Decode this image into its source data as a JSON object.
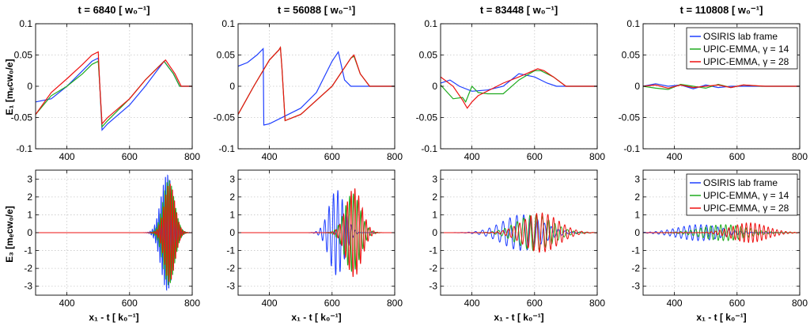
{
  "chart_data": {
    "type": "line",
    "titles": [
      "t = 6840 [ w₀⁻¹]",
      "t = 56088 [ w₀⁻¹]",
      "t = 83448 [ w₀⁻¹]",
      "t = 110808 [ w₀⁻¹]"
    ],
    "xlabel": "x₁ - t [ k₀⁻¹]",
    "top_ylabel": "E₁ [mₑcw₀/e]",
    "bottom_ylabel": "E₃ [mₑcw₀/e]",
    "xlim": [
      300,
      800
    ],
    "xticks": [
      "400",
      "600",
      "800"
    ],
    "top_ylim": [
      -0.1,
      0.1
    ],
    "top_yticks": [
      "-0.1",
      "-0.05",
      "0",
      "0.05",
      "0.1"
    ],
    "bottom_ylim": [
      -3.5,
      3.5
    ],
    "bottom_yticks": [
      "-3",
      "-2",
      "-1",
      "0",
      "1",
      "2",
      "3"
    ],
    "legend": [
      "OSIRIS lab frame",
      "UPIC-EMMA, γ = 14",
      "UPIC-EMMA, γ = 28"
    ],
    "colors": [
      "#1f3fff",
      "#1faa1f",
      "#ee1111"
    ],
    "top_series": [
      [
        [
          [
            300,
            -0.025
          ],
          [
            350,
            -0.02
          ],
          [
            400,
            0.0
          ],
          [
            450,
            0.025
          ],
          [
            480,
            0.04
          ],
          [
            500,
            0.045
          ],
          [
            505,
            0.0
          ],
          [
            512,
            -0.07
          ],
          [
            530,
            -0.06
          ],
          [
            600,
            -0.03
          ],
          [
            650,
            0.0
          ],
          [
            710,
            0.04
          ],
          [
            740,
            0.02
          ],
          [
            760,
            0.0
          ],
          [
            800,
            0.0
          ]
        ],
        [
          [
            300,
            -0.045
          ],
          [
            350,
            -0.015
          ],
          [
            400,
            0.0
          ],
          [
            450,
            0.02
          ],
          [
            480,
            0.035
          ],
          [
            500,
            0.04
          ],
          [
            505,
            0.0
          ],
          [
            512,
            -0.065
          ],
          [
            530,
            -0.055
          ],
          [
            600,
            -0.02
          ],
          [
            650,
            0.01
          ],
          [
            710,
            0.04
          ],
          [
            740,
            0.02
          ],
          [
            760,
            0.0
          ],
          [
            800,
            0.0
          ]
        ],
        [
          [
            300,
            -0.045
          ],
          [
            350,
            -0.01
          ],
          [
            400,
            0.012
          ],
          [
            450,
            0.035
          ],
          [
            480,
            0.05
          ],
          [
            500,
            0.055
          ],
          [
            505,
            0.0
          ],
          [
            512,
            -0.06
          ],
          [
            530,
            -0.05
          ],
          [
            600,
            -0.02
          ],
          [
            650,
            0.01
          ],
          [
            715,
            0.042
          ],
          [
            745,
            0.02
          ],
          [
            765,
            0.0
          ],
          [
            800,
            0.0
          ]
        ]
      ],
      [
        [
          [
            300,
            0.032
          ],
          [
            330,
            0.038
          ],
          [
            360,
            0.05
          ],
          [
            380,
            0.06
          ],
          [
            382,
            -0.062
          ],
          [
            400,
            -0.06
          ],
          [
            500,
            -0.035
          ],
          [
            550,
            -0.01
          ],
          [
            600,
            0.04
          ],
          [
            620,
            0.055
          ],
          [
            640,
            0.01
          ],
          [
            660,
            0.0
          ],
          [
            800,
            0.0
          ]
        ],
        [
          [
            300,
            -0.045
          ],
          [
            350,
            0.0
          ],
          [
            400,
            0.042
          ],
          [
            430,
            0.058
          ],
          [
            435,
            0.062
          ],
          [
            440,
            0.03
          ],
          [
            450,
            -0.055
          ],
          [
            500,
            -0.045
          ],
          [
            600,
            0.0
          ],
          [
            660,
            0.045
          ],
          [
            670,
            0.048
          ],
          [
            690,
            0.02
          ],
          [
            720,
            0.0
          ],
          [
            800,
            0.0
          ]
        ],
        [
          [
            300,
            -0.045
          ],
          [
            350,
            0.0
          ],
          [
            400,
            0.042
          ],
          [
            430,
            0.058
          ],
          [
            435,
            0.062
          ],
          [
            440,
            0.03
          ],
          [
            450,
            -0.055
          ],
          [
            500,
            -0.045
          ],
          [
            600,
            0.0
          ],
          [
            660,
            0.045
          ],
          [
            670,
            0.05
          ],
          [
            690,
            0.02
          ],
          [
            720,
            0.0
          ],
          [
            800,
            0.0
          ]
        ]
      ],
      [
        [
          [
            300,
            0.005
          ],
          [
            330,
            0.01
          ],
          [
            360,
            0.0
          ],
          [
            400,
            -0.008
          ],
          [
            450,
            -0.006
          ],
          [
            500,
            0.0
          ],
          [
            550,
            0.02
          ],
          [
            600,
            0.015
          ],
          [
            640,
            0.005
          ],
          [
            670,
            0.0
          ],
          [
            800,
            0.0
          ]
        ],
        [
          [
            300,
            0.002
          ],
          [
            340,
            -0.02
          ],
          [
            370,
            -0.018
          ],
          [
            380,
            -0.025
          ],
          [
            400,
            0.0
          ],
          [
            420,
            -0.01
          ],
          [
            450,
            -0.012
          ],
          [
            500,
            -0.012
          ],
          [
            550,
            0.01
          ],
          [
            600,
            0.025
          ],
          [
            620,
            0.025
          ],
          [
            660,
            0.015
          ],
          [
            700,
            0.0
          ],
          [
            800,
            0.0
          ]
        ],
        [
          [
            300,
            0.015
          ],
          [
            340,
            0.0
          ],
          [
            370,
            -0.022
          ],
          [
            385,
            -0.035
          ],
          [
            400,
            -0.025
          ],
          [
            420,
            -0.015
          ],
          [
            460,
            -0.005
          ],
          [
            500,
            0.005
          ],
          [
            550,
            0.015
          ],
          [
            610,
            0.028
          ],
          [
            630,
            0.025
          ],
          [
            660,
            0.015
          ],
          [
            700,
            0.0
          ],
          [
            800,
            0.0
          ]
        ]
      ],
      [
        [
          [
            300,
            0.0
          ],
          [
            340,
            0.004
          ],
          [
            380,
            0.0
          ],
          [
            420,
            0.002
          ],
          [
            460,
            -0.004
          ],
          [
            500,
            0.002
          ],
          [
            540,
            -0.002
          ],
          [
            580,
            0.0
          ],
          [
            800,
            0.0
          ]
        ],
        [
          [
            300,
            0.0
          ],
          [
            340,
            -0.003
          ],
          [
            380,
            -0.005
          ],
          [
            420,
            0.003
          ],
          [
            460,
            0.0
          ],
          [
            500,
            -0.003
          ],
          [
            540,
            0.003
          ],
          [
            580,
            -0.002
          ],
          [
            620,
            0.002
          ],
          [
            680,
            0.0
          ],
          [
            800,
            0.0
          ]
        ],
        [
          [
            300,
            0.0
          ],
          [
            340,
            0.002
          ],
          [
            380,
            -0.003
          ],
          [
            420,
            0.002
          ],
          [
            460,
            -0.002
          ],
          [
            500,
            0.0
          ],
          [
            540,
            0.002
          ],
          [
            580,
            -0.002
          ],
          [
            620,
            0.002
          ],
          [
            690,
            0.0
          ],
          [
            800,
            0.0
          ]
        ]
      ]
    ],
    "bottom_packets": [
      [
        {
          "series": 0,
          "center": 720,
          "width": 28,
          "amp": 3.3,
          "period": 7
        },
        {
          "series": 1,
          "center": 725,
          "width": 26,
          "amp": 3.0,
          "period": 7
        },
        {
          "series": 2,
          "center": 728,
          "width": 24,
          "amp": 2.8,
          "period": 7
        }
      ],
      [
        {
          "series": 0,
          "center": 615,
          "width": 35,
          "amp": 2.4,
          "period": 14
        },
        {
          "series": 1,
          "center": 665,
          "width": 35,
          "amp": 2.2,
          "period": 12
        },
        {
          "series": 2,
          "center": 670,
          "width": 35,
          "amp": 2.5,
          "period": 12
        }
      ],
      [
        {
          "series": 0,
          "center": 560,
          "width": 90,
          "amp": 1.0,
          "period": 22
        },
        {
          "series": 1,
          "center": 600,
          "width": 80,
          "amp": 1.0,
          "period": 20
        },
        {
          "series": 2,
          "center": 620,
          "width": 80,
          "amp": 1.1,
          "period": 18
        }
      ],
      [
        {
          "series": 0,
          "center": 480,
          "width": 100,
          "amp": 0.45,
          "period": 18
        },
        {
          "series": 1,
          "center": 560,
          "width": 100,
          "amp": 0.45,
          "period": 16
        },
        {
          "series": 2,
          "center": 640,
          "width": 80,
          "amp": 0.55,
          "period": 14
        }
      ]
    ]
  }
}
